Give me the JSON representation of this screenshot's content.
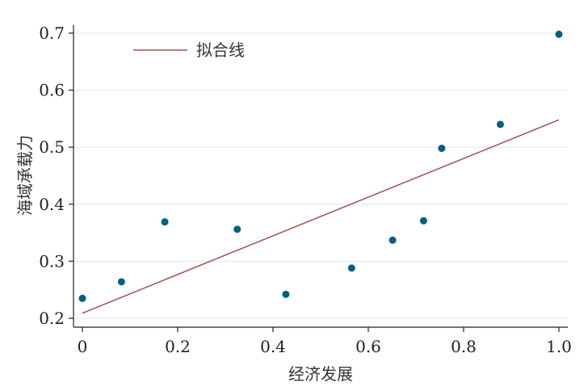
{
  "chart_data": {
    "type": "scatter",
    "xlabel": "经济发展",
    "ylabel": "海域承载力",
    "xlim": [
      0,
      1.0
    ],
    "ylim": [
      0.2,
      0.7
    ],
    "x_ticks": [
      "0",
      "0.2",
      "0.4",
      "0.6",
      "0.8",
      "1.0"
    ],
    "y_ticks": [
      "0.2",
      "0.3",
      "0.4",
      "0.5",
      "0.6",
      "0.7"
    ],
    "grid": "horizontal",
    "legend": {
      "position": "top-left",
      "entries": [
        "拟合线"
      ]
    },
    "series": [
      {
        "type": "scatter",
        "color": "#00607f",
        "points": [
          [
            0.0,
            0.235
          ],
          [
            0.082,
            0.264
          ],
          [
            0.173,
            0.369
          ],
          [
            0.325,
            0.356
          ],
          [
            0.427,
            0.242
          ],
          [
            0.565,
            0.288
          ],
          [
            0.651,
            0.337
          ],
          [
            0.716,
            0.371
          ],
          [
            0.754,
            0.498
          ],
          [
            0.877,
            0.54
          ],
          [
            1.0,
            0.698
          ]
        ]
      },
      {
        "name": "拟合线",
        "type": "line",
        "color": "#a0524e",
        "points": [
          [
            0.0,
            0.209
          ],
          [
            1.0,
            0.548
          ]
        ]
      }
    ]
  }
}
